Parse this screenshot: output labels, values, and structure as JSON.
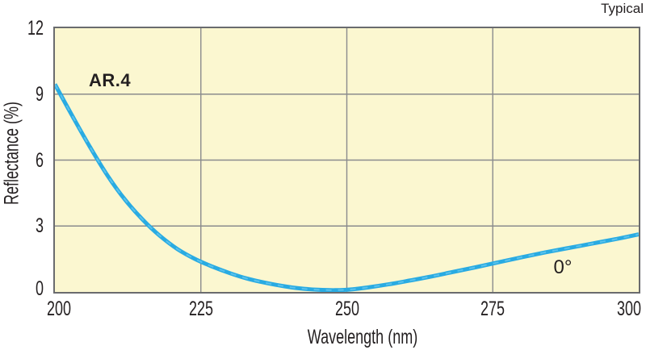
{
  "page": {
    "corner_note": "Typical"
  },
  "chart_data": {
    "type": "line",
    "title": "AR.4",
    "xlabel": "Wavelength (nm)",
    "ylabel": "Reflectance (%)",
    "xlim": [
      200,
      300
    ],
    "ylim": [
      0,
      12
    ],
    "x_ticks": [
      200,
      225,
      250,
      275,
      300
    ],
    "y_ticks": [
      0,
      3,
      6,
      9,
      12
    ],
    "grid": true,
    "legend_position": "none",
    "plot_bg_color": "#FBF7D0",
    "grid_color": "#8A8B8D",
    "border_color": "#6A6B6E",
    "text_color": "#231F20",
    "series": [
      {
        "name": "AR.4",
        "annotation": "0°",
        "color": "#29ABE2",
        "dash_highlight_color": "#63C5ED",
        "points": [
          [
            200,
            9.45
          ],
          [
            203,
            8.0
          ],
          [
            206,
            6.6
          ],
          [
            209,
            5.3
          ],
          [
            212,
            4.2
          ],
          [
            215,
            3.3
          ],
          [
            218,
            2.55
          ],
          [
            221,
            1.95
          ],
          [
            224,
            1.5
          ],
          [
            227,
            1.15
          ],
          [
            230,
            0.85
          ],
          [
            233,
            0.6
          ],
          [
            236,
            0.42
          ],
          [
            239,
            0.27
          ],
          [
            242,
            0.16
          ],
          [
            245,
            0.1
          ],
          [
            248,
            0.08
          ],
          [
            251,
            0.12
          ],
          [
            254,
            0.22
          ],
          [
            257,
            0.34
          ],
          [
            260,
            0.48
          ],
          [
            264,
            0.68
          ],
          [
            268,
            0.9
          ],
          [
            272,
            1.12
          ],
          [
            276,
            1.35
          ],
          [
            280,
            1.58
          ],
          [
            284,
            1.8
          ],
          [
            288,
            2.0
          ],
          [
            292,
            2.2
          ],
          [
            296,
            2.4
          ],
          [
            300,
            2.62
          ]
        ]
      }
    ]
  }
}
